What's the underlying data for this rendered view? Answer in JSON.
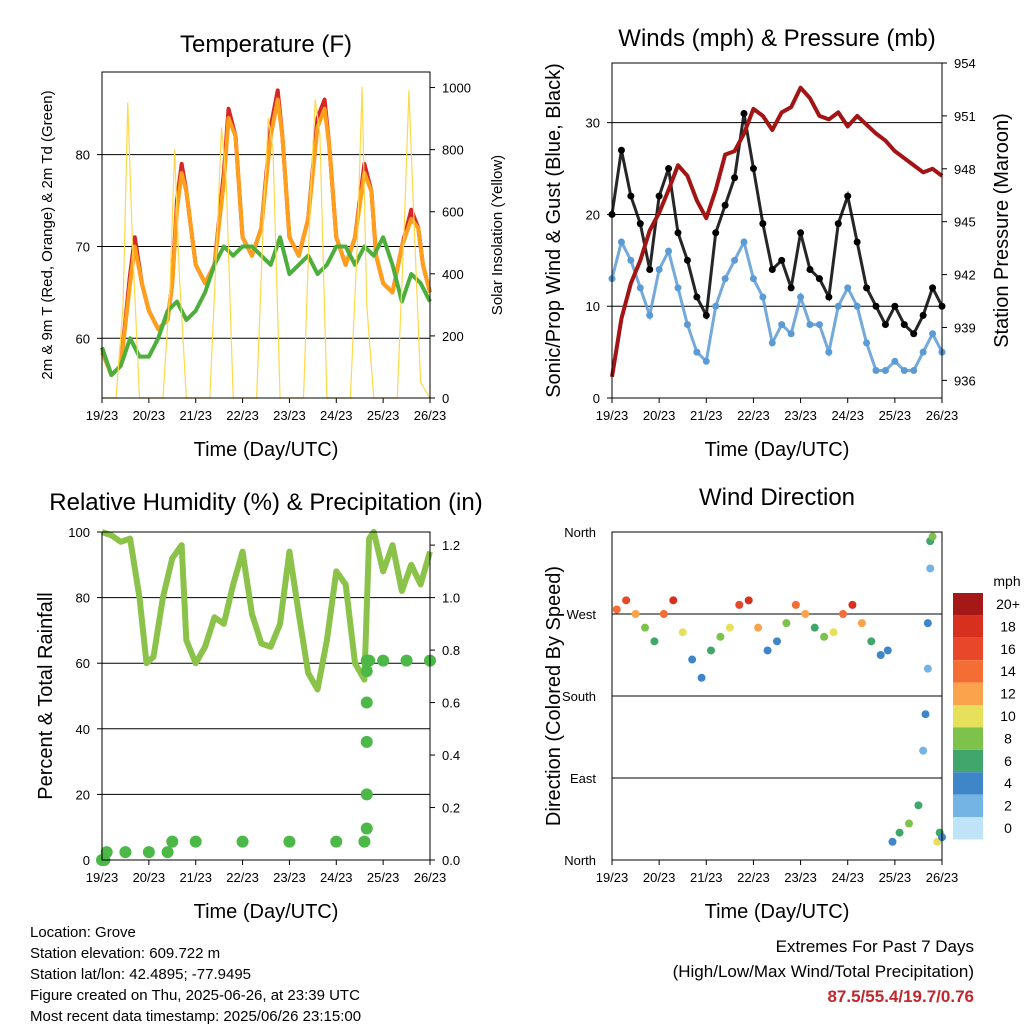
{
  "x_tick_labels": [
    "19/23",
    "20/23",
    "21/23",
    "22/23",
    "23/23",
    "24/23",
    "25/23",
    "26/23"
  ],
  "footer": {
    "location": "Location: Grove",
    "elevation": "Station elevation: 609.722 m",
    "latlon": "Station lat/lon: 42.4895; -77.9495",
    "created": "Figure created on Thu, 2025-06-26, at 23:39 UTC",
    "recent": "Most recent data timestamp: 2025/06/26 23:15:00"
  },
  "extremes": {
    "title": "Extremes For Past 7 Days",
    "subtitle": "(High/Low/Max Wind/Total Precipitation)",
    "values": "87.5/55.4/19.7/0.76",
    "color": "#c1272d"
  },
  "chart_data": [
    {
      "type": "line",
      "title": "Temperature (F)",
      "xlabel": "Time (Day/UTC)",
      "ylabel": "2m & 9m T (Red, Orange) & 2m Td (Green)",
      "y2label": "Solar Insolation (Yellow)",
      "ylim": [
        53.5,
        89
      ],
      "yticks": [
        60,
        70,
        80
      ],
      "y2lim": [
        0,
        1050
      ],
      "y2ticks": [
        0,
        200,
        400,
        600,
        800,
        1000
      ],
      "xlim": [
        0,
        7
      ],
      "grid": true,
      "series": [
        {
          "color": "#d62728",
          "x": [
            0,
            0.2,
            0.4,
            0.6,
            0.7,
            0.85,
            1.0,
            1.2,
            1.4,
            1.5,
            1.6,
            1.7,
            1.8,
            2.0,
            2.2,
            2.4,
            2.6,
            2.7,
            2.85,
            3.0,
            3.2,
            3.4,
            3.6,
            3.75,
            3.85,
            4.0,
            4.2,
            4.4,
            4.6,
            4.75,
            4.85,
            5.0,
            5.2,
            5.4,
            5.6,
            5.75,
            5.85,
            6.0,
            6.2,
            6.4,
            6.6,
            6.75,
            6.85,
            7.0
          ],
          "values": [
            59,
            56,
            57,
            67,
            71,
            66,
            63,
            61,
            62,
            66,
            75,
            79,
            76,
            68,
            66,
            68,
            78,
            85,
            82,
            71,
            69,
            72,
            83,
            87,
            82,
            71,
            69,
            73,
            84,
            86,
            81,
            71,
            68,
            71,
            79,
            76,
            69,
            66,
            65,
            70,
            74,
            72,
            68,
            65
          ]
        },
        {
          "color": "#ff9f1c",
          "x": [
            0,
            0.2,
            0.4,
            0.6,
            0.7,
            0.85,
            1.0,
            1.2,
            1.4,
            1.5,
            1.6,
            1.7,
            1.8,
            2.0,
            2.2,
            2.4,
            2.6,
            2.7,
            2.85,
            3.0,
            3.2,
            3.4,
            3.6,
            3.75,
            3.85,
            4.0,
            4.2,
            4.4,
            4.6,
            4.75,
            4.85,
            5.0,
            5.2,
            5.4,
            5.6,
            5.75,
            5.85,
            6.0,
            6.2,
            6.4,
            6.6,
            6.75,
            6.85,
            7.0
          ],
          "values": [
            58.5,
            56,
            57,
            66,
            70,
            66,
            63,
            61,
            62,
            66,
            74,
            78,
            76,
            68,
            66,
            68,
            77,
            84,
            82,
            71,
            69,
            72,
            82,
            86,
            82,
            71,
            69,
            73,
            83,
            85,
            81,
            71,
            68,
            71,
            78,
            76,
            69,
            66,
            65,
            70,
            73,
            72,
            68,
            65
          ]
        },
        {
          "color": "#4caf3c",
          "x": [
            0,
            0.2,
            0.4,
            0.6,
            0.8,
            1.0,
            1.2,
            1.4,
            1.6,
            1.8,
            2.0,
            2.2,
            2.4,
            2.6,
            2.8,
            3.0,
            3.2,
            3.4,
            3.6,
            3.8,
            4.0,
            4.2,
            4.4,
            4.6,
            4.8,
            5.0,
            5.2,
            5.4,
            5.6,
            5.8,
            6.0,
            6.2,
            6.4,
            6.6,
            6.8,
            7.0
          ],
          "values": [
            59,
            56,
            57,
            60,
            58,
            58,
            60,
            63,
            64,
            62,
            63,
            65,
            68,
            70,
            69,
            70,
            70,
            69,
            68,
            71,
            67,
            68,
            69,
            67,
            68,
            70,
            70,
            68,
            70,
            69,
            71,
            68,
            64,
            67,
            66,
            64
          ]
        },
        {
          "color": "#ffd84a",
          "axis": "y2",
          "x": [
            0,
            0.3,
            0.45,
            0.55,
            0.65,
            0.8,
            1.0,
            1.3,
            1.45,
            1.55,
            1.65,
            1.8,
            2.0,
            2.3,
            2.45,
            2.55,
            2.65,
            2.8,
            3.0,
            3.3,
            3.45,
            3.55,
            3.65,
            3.8,
            4.0,
            4.3,
            4.45,
            4.55,
            4.65,
            4.8,
            5.0,
            5.3,
            5.45,
            5.55,
            5.65,
            5.8,
            6.0,
            6.3,
            6.45,
            6.55,
            6.65,
            6.8,
            7.0
          ],
          "values": [
            0,
            0,
            300,
            950,
            500,
            0,
            0,
            0,
            350,
            800,
            400,
            0,
            0,
            0,
            500,
            870,
            700,
            0,
            0,
            0,
            600,
            900,
            800,
            0,
            0,
            0,
            650,
            960,
            850,
            0,
            0,
            0,
            500,
            1000,
            300,
            0,
            0,
            0,
            550,
            990,
            600,
            50,
            0
          ]
        }
      ]
    },
    {
      "type": "scatter",
      "title": "Winds (mph) & Pressure (mb)",
      "xlabel": "Time (Day/UTC)",
      "ylabel": "Sonic/Prop Wind & Gust (Blue, Black)",
      "y2label": "Station Pressure (Maroon)",
      "ylim": [
        0,
        36.5
      ],
      "yticks": [
        0,
        10,
        20,
        30
      ],
      "y2lim": [
        935,
        954
      ],
      "y2ticks": [
        936,
        939,
        942,
        945,
        948,
        951,
        954
      ],
      "xlim": [
        0,
        7
      ],
      "grid": true,
      "series": [
        {
          "color": "#000000",
          "x": [
            0,
            0.2,
            0.4,
            0.6,
            0.8,
            1.0,
            1.2,
            1.4,
            1.6,
            1.8,
            2.0,
            2.2,
            2.4,
            2.6,
            2.8,
            3.0,
            3.2,
            3.4,
            3.6,
            3.8,
            4.0,
            4.2,
            4.4,
            4.6,
            4.8,
            5.0,
            5.2,
            5.4,
            5.6,
            5.8,
            6.0,
            6.2,
            6.4,
            6.6,
            6.8,
            7.0
          ],
          "values": [
            20,
            27,
            22,
            19,
            14,
            22,
            25,
            18,
            15,
            11,
            9,
            18,
            21,
            24,
            31,
            25,
            19,
            14,
            15,
            12,
            18,
            14,
            13,
            11,
            19,
            22,
            17,
            12,
            10,
            8,
            10,
            8,
            7,
            9,
            12,
            10
          ]
        },
        {
          "color": "#5b9bd5",
          "x": [
            0,
            0.2,
            0.4,
            0.6,
            0.8,
            1.0,
            1.2,
            1.4,
            1.6,
            1.8,
            2.0,
            2.2,
            2.4,
            2.6,
            2.8,
            3.0,
            3.2,
            3.4,
            3.6,
            3.8,
            4.0,
            4.2,
            4.4,
            4.6,
            4.8,
            5.0,
            5.2,
            5.4,
            5.6,
            5.8,
            6.0,
            6.2,
            6.4,
            6.6,
            6.8,
            7.0
          ],
          "values": [
            13,
            17,
            15,
            12,
            9,
            14,
            16,
            12,
            8,
            5,
            4,
            10,
            13,
            15,
            17,
            13,
            11,
            6,
            8,
            7,
            11,
            8,
            8,
            5,
            10,
            12,
            10,
            6,
            3,
            3,
            4,
            3,
            3,
            5,
            7,
            5
          ]
        },
        {
          "color": "#a31515",
          "axis": "y2",
          "x": [
            0,
            0.2,
            0.4,
            0.6,
            0.8,
            1.0,
            1.2,
            1.4,
            1.6,
            1.8,
            2.0,
            2.2,
            2.4,
            2.6,
            2.8,
            3.0,
            3.2,
            3.4,
            3.6,
            3.8,
            4.0,
            4.2,
            4.4,
            4.6,
            4.8,
            5.0,
            5.2,
            5.4,
            5.6,
            5.8,
            6.0,
            6.2,
            6.4,
            6.6,
            6.8,
            7.0
          ],
          "values": [
            936.2,
            939.5,
            941.5,
            942.8,
            944.5,
            945.5,
            946.8,
            948.2,
            947.6,
            946.2,
            945.2,
            946.8,
            948.8,
            949.0,
            950.0,
            951.4,
            951.0,
            950.2,
            951.2,
            951.5,
            952.6,
            952.0,
            951.0,
            950.8,
            951.2,
            950.4,
            951.0,
            950.5,
            950.0,
            949.6,
            949.0,
            948.6,
            948.2,
            947.8,
            948.0,
            947.6
          ]
        }
      ]
    },
    {
      "type": "line",
      "title": "Relative Humidity (%) & Precipitation (in)",
      "xlabel": "Time (Day/UTC)",
      "ylabel": "Percent & Total Rainfall",
      "ylim": [
        0,
        100
      ],
      "yticks": [
        0,
        20,
        40,
        60,
        80,
        100
      ],
      "y2lim": [
        0,
        1.25
      ],
      "y2ticks": [
        0.0,
        0.2,
        0.4,
        0.6,
        0.8,
        1.0,
        1.2
      ],
      "xlim": [
        0,
        7
      ],
      "grid": true,
      "series": [
        {
          "color": "#8bc34a",
          "x": [
            0,
            0.2,
            0.4,
            0.6,
            0.8,
            0.95,
            1.1,
            1.3,
            1.5,
            1.7,
            1.8,
            2.0,
            2.2,
            2.4,
            2.6,
            2.8,
            3.0,
            3.2,
            3.4,
            3.6,
            3.8,
            4.0,
            4.2,
            4.4,
            4.6,
            4.8,
            5.0,
            5.2,
            5.4,
            5.6,
            5.7,
            5.8,
            6.0,
            6.2,
            6.4,
            6.6,
            6.8,
            7.0
          ],
          "values": [
            100,
            99,
            97,
            98,
            80,
            60,
            62,
            80,
            92,
            96,
            67,
            60,
            65,
            74,
            72,
            84,
            94,
            75,
            66,
            65,
            72,
            94,
            75,
            57,
            52,
            67,
            88,
            84,
            60,
            55,
            98,
            100,
            88,
            96,
            82,
            90,
            84,
            94
          ]
        },
        {
          "color": "#4cb847",
          "axis": "y2",
          "x": [
            0,
            0.05,
            0.1,
            0.5,
            1.0,
            1.4,
            1.5,
            2.0,
            3.0,
            4.0,
            5.0,
            5.6,
            5.65,
            5.65,
            5.65,
            5.65,
            5.65,
            5.65,
            5.7,
            6.0,
            6.5,
            7.0
          ],
          "values": [
            0,
            0,
            0.03,
            0.03,
            0.03,
            0.03,
            0.07,
            0.07,
            0.07,
            0.07,
            0.07,
            0.07,
            0.12,
            0.25,
            0.45,
            0.6,
            0.72,
            0.76,
            0.76,
            0.76,
            0.76,
            0.76
          ]
        }
      ]
    },
    {
      "type": "scatter",
      "title": "Wind Direction",
      "xlabel": "Time (Day/UTC)",
      "ylabel": "Direction (Colored By Speed)",
      "yticks": [
        "North",
        "East",
        "South",
        "West",
        "North"
      ],
      "ylim": [
        0,
        360
      ],
      "xlim": [
        0,
        7
      ],
      "grid": true,
      "colorbar_title": "mph",
      "colorbar_labels": [
        "20+",
        "18",
        "16",
        "14",
        "12",
        "10",
        "8",
        "6",
        "4",
        "2",
        "0"
      ],
      "colorbar_colors": [
        "#a51818",
        "#d7301f",
        "#e8472a",
        "#f46d34",
        "#fba34c",
        "#e6e05a",
        "#7dc24b",
        "#41a66b",
        "#3f86c8",
        "#74b4e4",
        "#bfe3f7"
      ],
      "direction_deg": [
        275,
        285,
        270,
        255,
        240,
        270,
        285,
        250,
        220,
        200,
        230,
        245,
        255,
        280,
        285,
        255,
        230,
        240,
        260,
        280,
        270,
        255,
        245,
        250,
        270,
        280,
        260,
        240,
        225,
        230,
        20,
        30,
        40,
        60,
        120,
        160,
        210,
        260,
        320,
        350,
        355,
        20,
        30,
        25
      ],
      "speed_mph": [
        14,
        16,
        12,
        8,
        6,
        14,
        18,
        10,
        4,
        3,
        6,
        8,
        10,
        16,
        18,
        12,
        4,
        4,
        8,
        14,
        12,
        6,
        8,
        10,
        14,
        18,
        12,
        6,
        4,
        4,
        4,
        6,
        8,
        6,
        2,
        3,
        2,
        4,
        2,
        6,
        8,
        10,
        6,
        4
      ],
      "time_day": [
        0.1,
        0.3,
        0.5,
        0.7,
        0.9,
        1.1,
        1.3,
        1.5,
        1.7,
        1.9,
        2.1,
        2.3,
        2.5,
        2.7,
        2.9,
        3.1,
        3.3,
        3.5,
        3.7,
        3.9,
        4.1,
        4.3,
        4.5,
        4.7,
        4.9,
        5.1,
        5.3,
        5.5,
        5.7,
        5.85,
        5.95,
        6.1,
        6.3,
        6.5,
        6.6,
        6.65,
        6.7,
        6.7,
        6.75,
        6.75,
        6.8,
        6.9,
        6.95,
        7.0
      ]
    }
  ]
}
